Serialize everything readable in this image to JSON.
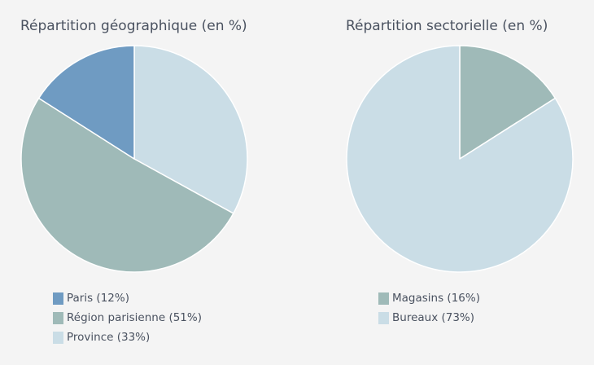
{
  "chart_data": [
    {
      "type": "pie",
      "title": "Répartition géographique (en %)",
      "slices": [
        {
          "label": "Paris (12%)",
          "value": 12,
          "color": "#6f9bc2"
        },
        {
          "label": "Région parisienne (51%)",
          "value": 51,
          "color": "#9fbab8"
        },
        {
          "label": "Province (33%)",
          "value": 33,
          "color": "#cadde6"
        }
      ],
      "draw_order": [
        "Province (33%)",
        "Région parisienne (51%)",
        "Paris (12%)"
      ]
    },
    {
      "type": "pie",
      "title": "Répartition sectorielle (en %)",
      "slices": [
        {
          "label": "Magasins (16%)",
          "value": 16,
          "color": "#9fbab8"
        },
        {
          "label": "Bureaux (73%)",
          "value": 73,
          "color": "#cadde6"
        }
      ],
      "draw_order": [
        "Magasins (16%)",
        "Bureaux (73%)"
      ]
    }
  ]
}
